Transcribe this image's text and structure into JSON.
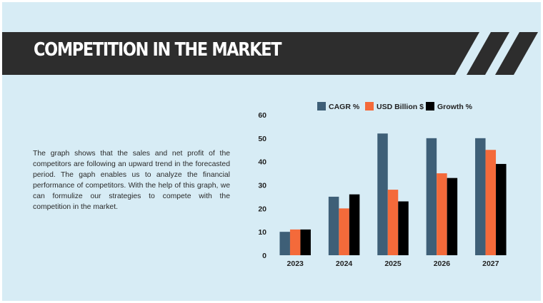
{
  "slide": {
    "title": "COMPETITION IN THE MARKET",
    "description": "The graph shows that the sales and net profit of the competitors are following an upward trend in the forecasted period. The gaph enables us to analyze the financial performance of competitors. With the help of this graph, we can formulize our strategies to compete with the competition in the market."
  },
  "colors": {
    "background": "#d7ecf5",
    "header": "#2d2d2d",
    "cagr": "#3e5f77",
    "usd": "#f46a3a",
    "growth": "#000000"
  },
  "chart_data": {
    "type": "bar",
    "categories": [
      "2023",
      "2024",
      "2025",
      "2026",
      "2027"
    ],
    "series": [
      {
        "name": "CAGR %",
        "values": [
          10,
          25,
          52,
          50,
          50
        ]
      },
      {
        "name": "USD Billion $",
        "values": [
          11,
          20,
          28,
          35,
          45
        ]
      },
      {
        "name": "Growth %",
        "values": [
          11,
          26,
          23,
          33,
          39
        ]
      }
    ],
    "yticks": [
      "0",
      "10",
      "20",
      "30",
      "40",
      "50",
      "60"
    ],
    "ylim": [
      0,
      60
    ],
    "legend_position": "top",
    "grid": false,
    "title": "",
    "xlabel": "",
    "ylabel": ""
  }
}
